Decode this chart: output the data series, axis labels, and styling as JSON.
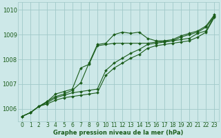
{
  "bg_color": "#cde8e8",
  "grid_color": "#a0c8c8",
  "line_color": "#1a5c1a",
  "xlabel": "Graphe pression niveau de la mer (hPa)",
  "ylim": [
    1005.5,
    1010.3
  ],
  "xlim": [
    -0.5,
    23.5
  ],
  "yticks": [
    1006,
    1007,
    1008,
    1009,
    1010
  ],
  "xticks": [
    0,
    1,
    2,
    3,
    4,
    5,
    6,
    7,
    8,
    9,
    10,
    11,
    12,
    13,
    14,
    15,
    16,
    17,
    18,
    19,
    20,
    21,
    22,
    23
  ],
  "series1": [
    1005.7,
    1005.85,
    1006.1,
    1006.3,
    1006.5,
    1006.6,
    1006.75,
    1007.05,
    1007.85,
    1008.6,
    1008.65,
    1009.0,
    1009.1,
    1009.05,
    1009.1,
    1008.85,
    1008.75,
    1008.75,
    1008.8,
    1008.95,
    1009.05,
    1009.15,
    1009.35,
    1009.8
  ],
  "series2": [
    1005.7,
    1005.85,
    1006.1,
    1006.25,
    1006.45,
    1006.55,
    1006.65,
    1006.7,
    1006.75,
    1006.8,
    1007.55,
    1007.85,
    1008.05,
    1008.25,
    1008.4,
    1008.6,
    1008.65,
    1008.7,
    1008.75,
    1008.8,
    1008.85,
    1009.05,
    1009.15,
    1009.75
  ],
  "series3": [
    1005.7,
    1005.85,
    1006.1,
    1006.2,
    1006.35,
    1006.45,
    1006.5,
    1006.55,
    1006.6,
    1006.65,
    1007.35,
    1007.65,
    1007.85,
    1008.05,
    1008.2,
    1008.45,
    1008.55,
    1008.6,
    1008.65,
    1008.7,
    1008.75,
    1008.9,
    1009.1,
    1009.7
  ],
  "series4": [
    1005.7,
    1005.85,
    1006.1,
    1006.3,
    1006.6,
    1006.7,
    1006.8,
    1007.65,
    1007.8,
    1008.55,
    1008.6,
    1008.65,
    1008.65,
    1008.65,
    1008.65,
    1008.65,
    1008.7,
    1008.72,
    1008.75,
    1008.9,
    1009.0,
    1009.1,
    1009.3,
    1009.75
  ],
  "markersize": 2.0,
  "linewidth": 0.8,
  "xlabel_fontsize": 6.0,
  "tick_fontsize": 5.5,
  "ytick_fontsize": 6.0
}
